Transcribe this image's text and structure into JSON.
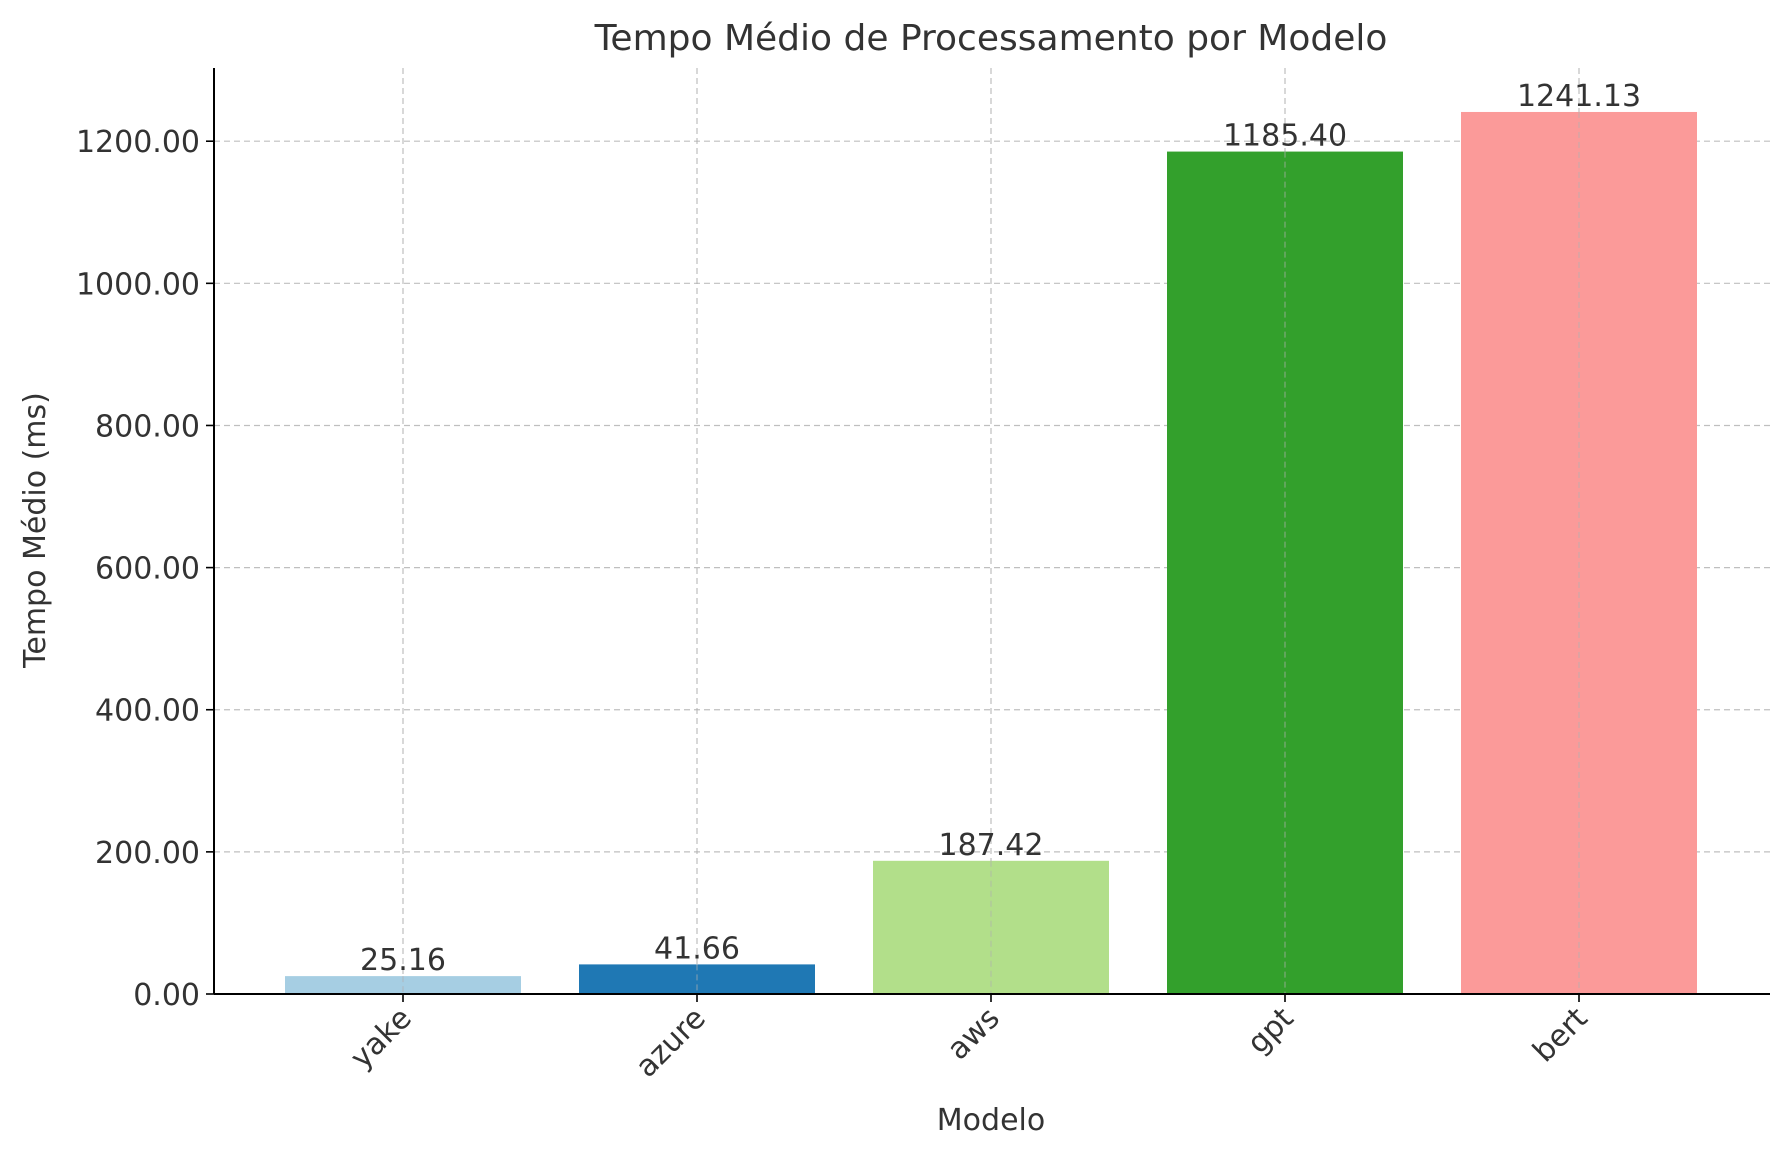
{
  "chart_data": {
    "type": "bar",
    "title": "Tempo Médio de Processamento por Modelo",
    "xlabel": "Modelo",
    "ylabel": "Tempo Médio (ms)",
    "categories": [
      "yake",
      "azure",
      "aws",
      "gpt",
      "bert"
    ],
    "values": [
      25.16,
      41.66,
      187.42,
      1185.4,
      1241.13
    ],
    "value_labels": [
      "25.16",
      "41.66",
      "187.42",
      "1185.40",
      "1241.13"
    ],
    "colors": [
      "#a6cee3",
      "#1f78b4",
      "#b2df8a",
      "#33a02c",
      "#fb9a99"
    ],
    "ylim": [
      0,
      1303
    ],
    "yticks": [
      0,
      200,
      400,
      600,
      800,
      1000,
      1200
    ],
    "ytick_labels": [
      "0.00",
      "200.00",
      "400.00",
      "600.00",
      "800.00",
      "1000.00",
      "1200.00"
    ],
    "grid": true,
    "legend": "none"
  }
}
